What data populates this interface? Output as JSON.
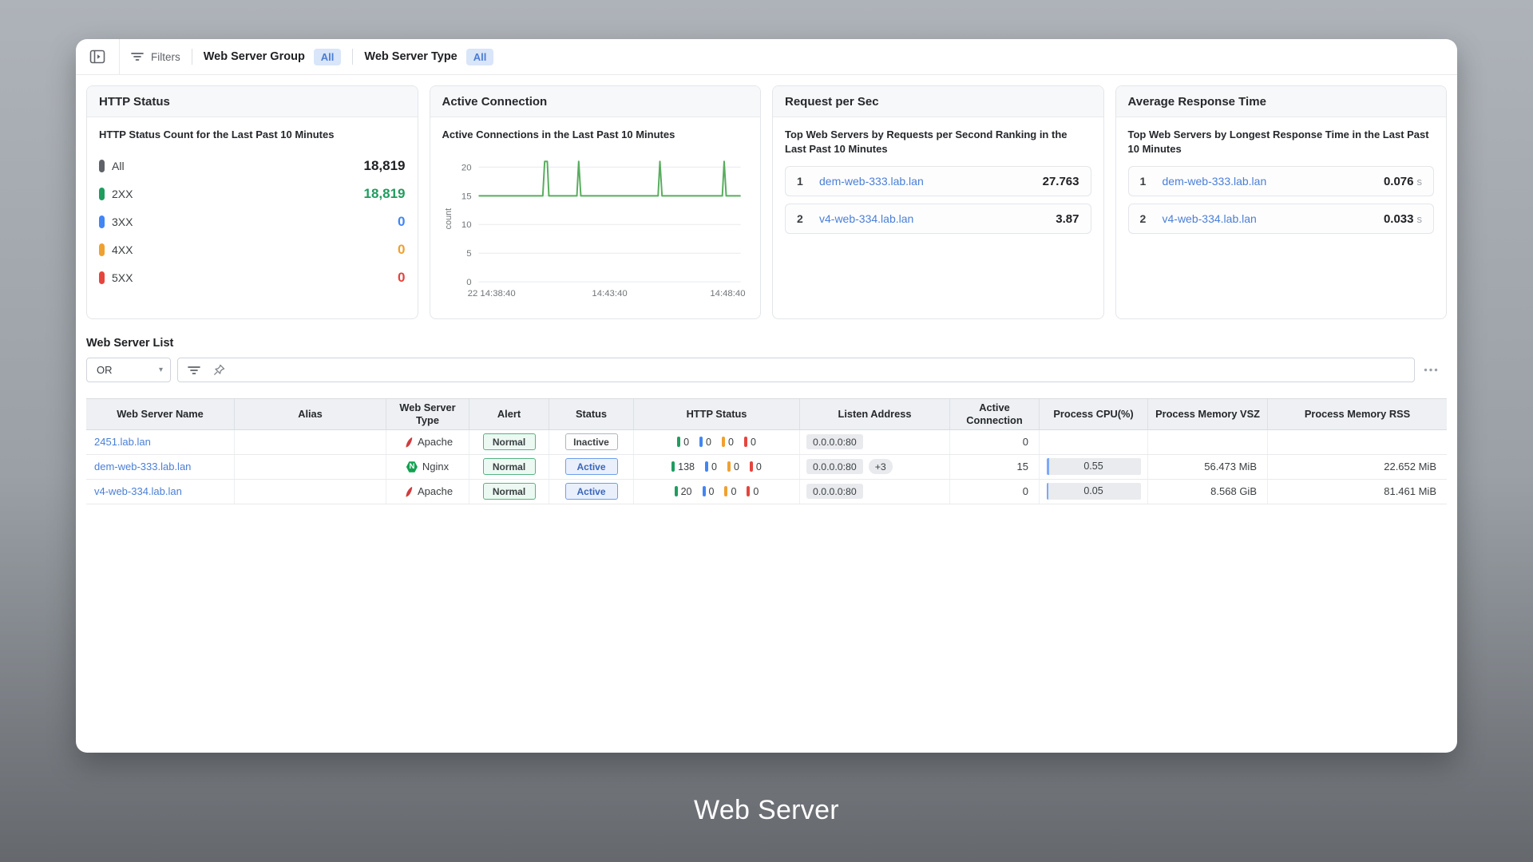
{
  "caption": {
    "text": "Web Server"
  },
  "toolbar": {
    "filters_label": "Filters",
    "group": {
      "label": "Web Server Group",
      "value": "All"
    },
    "type": {
      "label": "Web Server Type",
      "value": "All"
    }
  },
  "panels": {
    "http_status": {
      "title": "HTTP Status",
      "subtitle": "HTTP Status Count for the Last Past 10 Minutes",
      "rows": [
        {
          "label": "All",
          "value": "18,819"
        },
        {
          "label": "2XX",
          "value": "18,819"
        },
        {
          "label": "3XX",
          "value": "0"
        },
        {
          "label": "4XX",
          "value": "0"
        },
        {
          "label": "5XX",
          "value": "0"
        }
      ]
    },
    "request_per_sec": {
      "title": "Request per Sec",
      "subtitle": "Top Web Servers by Requests per Second Ranking in the Last Past 10 Minutes",
      "rows": [
        {
          "rank": "1",
          "name": "dem-web-333.lab.lan",
          "value": "27.763"
        },
        {
          "rank": "2",
          "name": "v4-web-334.lab.lan",
          "value": "3.87"
        }
      ]
    },
    "avg_response_time": {
      "title": "Average Response Time",
      "subtitle": "Top Web Servers by Longest Response Time in the Last Past 10 Minutes",
      "rows": [
        {
          "rank": "1",
          "name": "dem-web-333.lab.lan",
          "value": "0.076",
          "unit": "s"
        },
        {
          "rank": "2",
          "name": "v4-web-334.lab.lan",
          "value": "0.033",
          "unit": "s"
        }
      ]
    }
  },
  "chart_data": {
    "type": "line",
    "title": "Active Connection",
    "subtitle": "Active Connections in the Last Past 10 Minutes",
    "ylabel": "count",
    "ylim": [
      0,
      22
    ],
    "yticks": [
      0,
      5,
      10,
      15,
      20
    ],
    "xticks": [
      "22 14:38:40",
      "14:43:40",
      "14:48:40"
    ],
    "grid": true,
    "legend": "none",
    "series": [
      {
        "name": "active connections",
        "color": "#58ad5e",
        "points": [
          [
            0,
            15
          ],
          [
            0.245,
            15
          ],
          [
            0.252,
            21
          ],
          [
            0.262,
            21
          ],
          [
            0.268,
            15
          ],
          [
            0.375,
            15
          ],
          [
            0.382,
            21
          ],
          [
            0.39,
            15
          ],
          [
            0.685,
            15
          ],
          [
            0.692,
            21
          ],
          [
            0.7,
            15
          ],
          [
            0.93,
            15
          ],
          [
            0.937,
            21
          ],
          [
            0.945,
            15
          ],
          [
            1,
            15
          ]
        ]
      }
    ]
  },
  "list": {
    "title": "Web Server List",
    "filter": {
      "operator": "OR"
    },
    "columns": [
      "Web Server Name",
      "Alias",
      "Web Server Type",
      "Alert",
      "Status",
      "HTTP Status",
      "Listen Address",
      "Active Connection",
      "Process CPU(%)",
      "Process Memory VSZ",
      "Process Memory RSS"
    ],
    "rows": [
      {
        "name": "2451.lab.lan",
        "alias": "",
        "type": "Apache",
        "alert": "Normal",
        "status": "Inactive",
        "http": [
          "0",
          "0",
          "0",
          "0"
        ],
        "listen": "0.0.0.0:80",
        "listen_extra": "",
        "active_conn": "0",
        "cpu": "",
        "vsz": "",
        "rss": ""
      },
      {
        "name": "dem-web-333.lab.lan",
        "alias": "",
        "type": "Nginx",
        "alert": "Normal",
        "status": "Active",
        "http": [
          "138",
          "0",
          "0",
          "0"
        ],
        "listen": "0.0.0.0:80",
        "listen_extra": "+3",
        "active_conn": "15",
        "cpu": "0.55",
        "vsz": "56.473 MiB",
        "rss": "22.652 MiB"
      },
      {
        "name": "v4-web-334.lab.lan",
        "alias": "",
        "type": "Apache",
        "alert": "Normal",
        "status": "Active",
        "http": [
          "20",
          "0",
          "0",
          "0"
        ],
        "listen": "0.0.0.0:80",
        "listen_extra": "",
        "active_conn": "0",
        "cpu": "0.05",
        "vsz": "8.568 GiB",
        "rss": "81.461 MiB"
      }
    ]
  },
  "colors": {
    "status_all": "#5f6368",
    "status_2xx": "#1f9d5f",
    "status_3xx": "#4285f4",
    "status_4xx": "#f0a030",
    "status_5xx": "#e5453d",
    "value_default": "#202124",
    "link": "#4a7fd6",
    "chart_line": "#58ad5e",
    "toolbar_badge_bg": "#d9e5f8",
    "toolbar_badge_text": "#4b7dd3"
  }
}
